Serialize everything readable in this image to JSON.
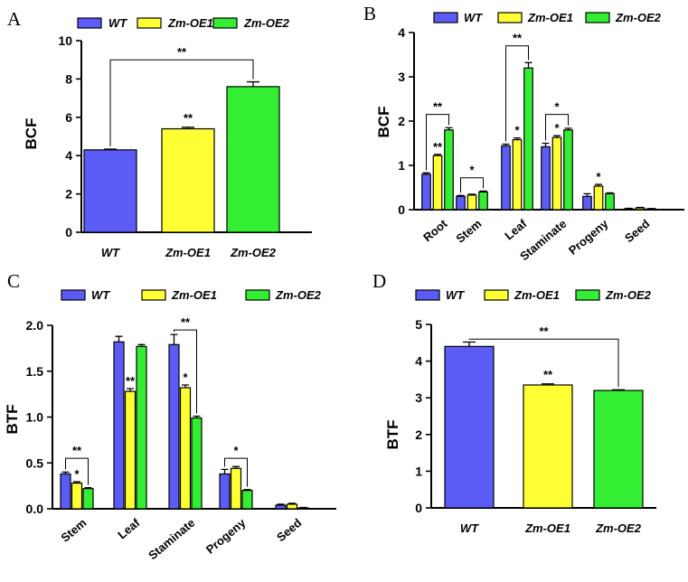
{
  "colors": {
    "WT": "#5b5bf5",
    "Zm-OE1": "#ffff33",
    "Zm-OE2": "#33ee33"
  },
  "chart_data": [
    {
      "id": "A",
      "letter": "A",
      "type": "bar",
      "ylabel": "BCF",
      "ylim": [
        0,
        10
      ],
      "yticks": [
        "0",
        "2",
        "4",
        "6",
        "8",
        "10"
      ],
      "legend": [
        "WT",
        "Zm-OE1",
        "Zm-OE2"
      ],
      "categories": [
        "WT",
        "Zm-OE1",
        "Zm-OE2"
      ],
      "italic_categories": true,
      "values": [
        4.3,
        5.4,
        7.6
      ],
      "errors": [
        0.04,
        0.08,
        0.25
      ],
      "point_labels": [
        "",
        "**",
        ""
      ],
      "brackets": [
        {
          "from": 0,
          "to": 2,
          "y": 9.0,
          "label": "**"
        }
      ]
    },
    {
      "id": "B",
      "letter": "B",
      "type": "bar",
      "ylabel": "BCF",
      "ylim": [
        0,
        4
      ],
      "yticks": [
        "0",
        "1",
        "2",
        "3",
        "4"
      ],
      "legend": [
        "WT",
        "Zm-OE1",
        "Zm-OE2"
      ],
      "categories": [
        "Root",
        "Stem",
        "Leaf",
        "Staminate",
        "Progeny",
        "Seed"
      ],
      "series": [
        {
          "name": "WT",
          "values": [
            0.8,
            0.3,
            1.44,
            1.42,
            0.3,
            0.02
          ],
          "errors": [
            0.03,
            0.02,
            0.04,
            0.08,
            0.06,
            0.01
          ]
        },
        {
          "name": "Zm-OE1",
          "values": [
            1.22,
            0.33,
            1.58,
            1.63,
            0.53,
            0.04
          ],
          "errors": [
            0.03,
            0.02,
            0.04,
            0.04,
            0.04,
            0.01
          ]
        },
        {
          "name": "Zm-OE2",
          "values": [
            1.8,
            0.4,
            3.2,
            1.8,
            0.36,
            0.02
          ],
          "errors": [
            0.05,
            0.02,
            0.12,
            0.04,
            0.02,
            0.005
          ]
        }
      ],
      "point_labels": [
        [
          "",
          "**",
          ""
        ],
        [
          "",
          "",
          ""
        ],
        [
          "",
          "*",
          ""
        ],
        [
          "",
          "*",
          ""
        ],
        [
          "",
          "*",
          ""
        ],
        [
          "",
          "",
          ""
        ]
      ],
      "brackets": [
        {
          "category": 0,
          "y": 2.15,
          "label": "**"
        },
        {
          "category": 1,
          "y": 0.72,
          "label": "*"
        },
        {
          "category": 2,
          "y": 3.7,
          "label": "**"
        },
        {
          "category": 3,
          "y": 2.15,
          "label": "*"
        }
      ]
    },
    {
      "id": "C",
      "letter": "C",
      "type": "bar",
      "ylabel": "BTF",
      "ylim": [
        0,
        2.0
      ],
      "yticks": [
        "0.0",
        "0.5",
        "1.0",
        "1.5",
        "2.0"
      ],
      "legend": [
        "WT",
        "Zm-OE1",
        "Zm-OE2"
      ],
      "categories": [
        "Stem",
        "Leaf",
        "Staminate",
        "Progeny",
        "Seed"
      ],
      "series": [
        {
          "name": "WT",
          "values": [
            0.38,
            1.82,
            1.79,
            0.38,
            0.04
          ],
          "errors": [
            0.02,
            0.06,
            0.11,
            0.05,
            0.01
          ]
        },
        {
          "name": "Zm-OE1",
          "values": [
            0.28,
            1.28,
            1.32,
            0.44,
            0.05
          ],
          "errors": [
            0.015,
            0.03,
            0.03,
            0.02,
            0.01
          ]
        },
        {
          "name": "Zm-OE2",
          "values": [
            0.22,
            1.77,
            0.99,
            0.2,
            0.01
          ],
          "errors": [
            0.01,
            0.02,
            0.02,
            0.01,
            0.005
          ]
        }
      ],
      "point_labels": [
        [
          "",
          "*",
          ""
        ],
        [
          "",
          "**",
          ""
        ],
        [
          "",
          "*",
          ""
        ],
        [
          "",
          "",
          ""
        ],
        [
          "",
          "",
          ""
        ]
      ],
      "brackets": [
        {
          "category": 0,
          "y": 0.55,
          "label": "**"
        },
        {
          "category": 2,
          "y": 1.95,
          "label": "**"
        },
        {
          "category": 3,
          "y": 0.55,
          "label": "*"
        }
      ]
    },
    {
      "id": "D",
      "letter": "D",
      "type": "bar",
      "ylabel": "BTF",
      "ylim": [
        0,
        5
      ],
      "yticks": [
        "0",
        "1",
        "2",
        "3",
        "4",
        "5"
      ],
      "legend": [
        "WT",
        "Zm-OE1",
        "Zm-OE2"
      ],
      "categories": [
        "WT",
        "Zm-OE1",
        "Zm-OE2"
      ],
      "italic_categories": true,
      "values": [
        4.4,
        3.35,
        3.2
      ],
      "errors": [
        0.12,
        0.03,
        0.02
      ],
      "point_labels": [
        "",
        "**",
        ""
      ],
      "brackets": [
        {
          "from": 0,
          "to": 2,
          "y": 4.6,
          "label": "**"
        }
      ]
    }
  ]
}
